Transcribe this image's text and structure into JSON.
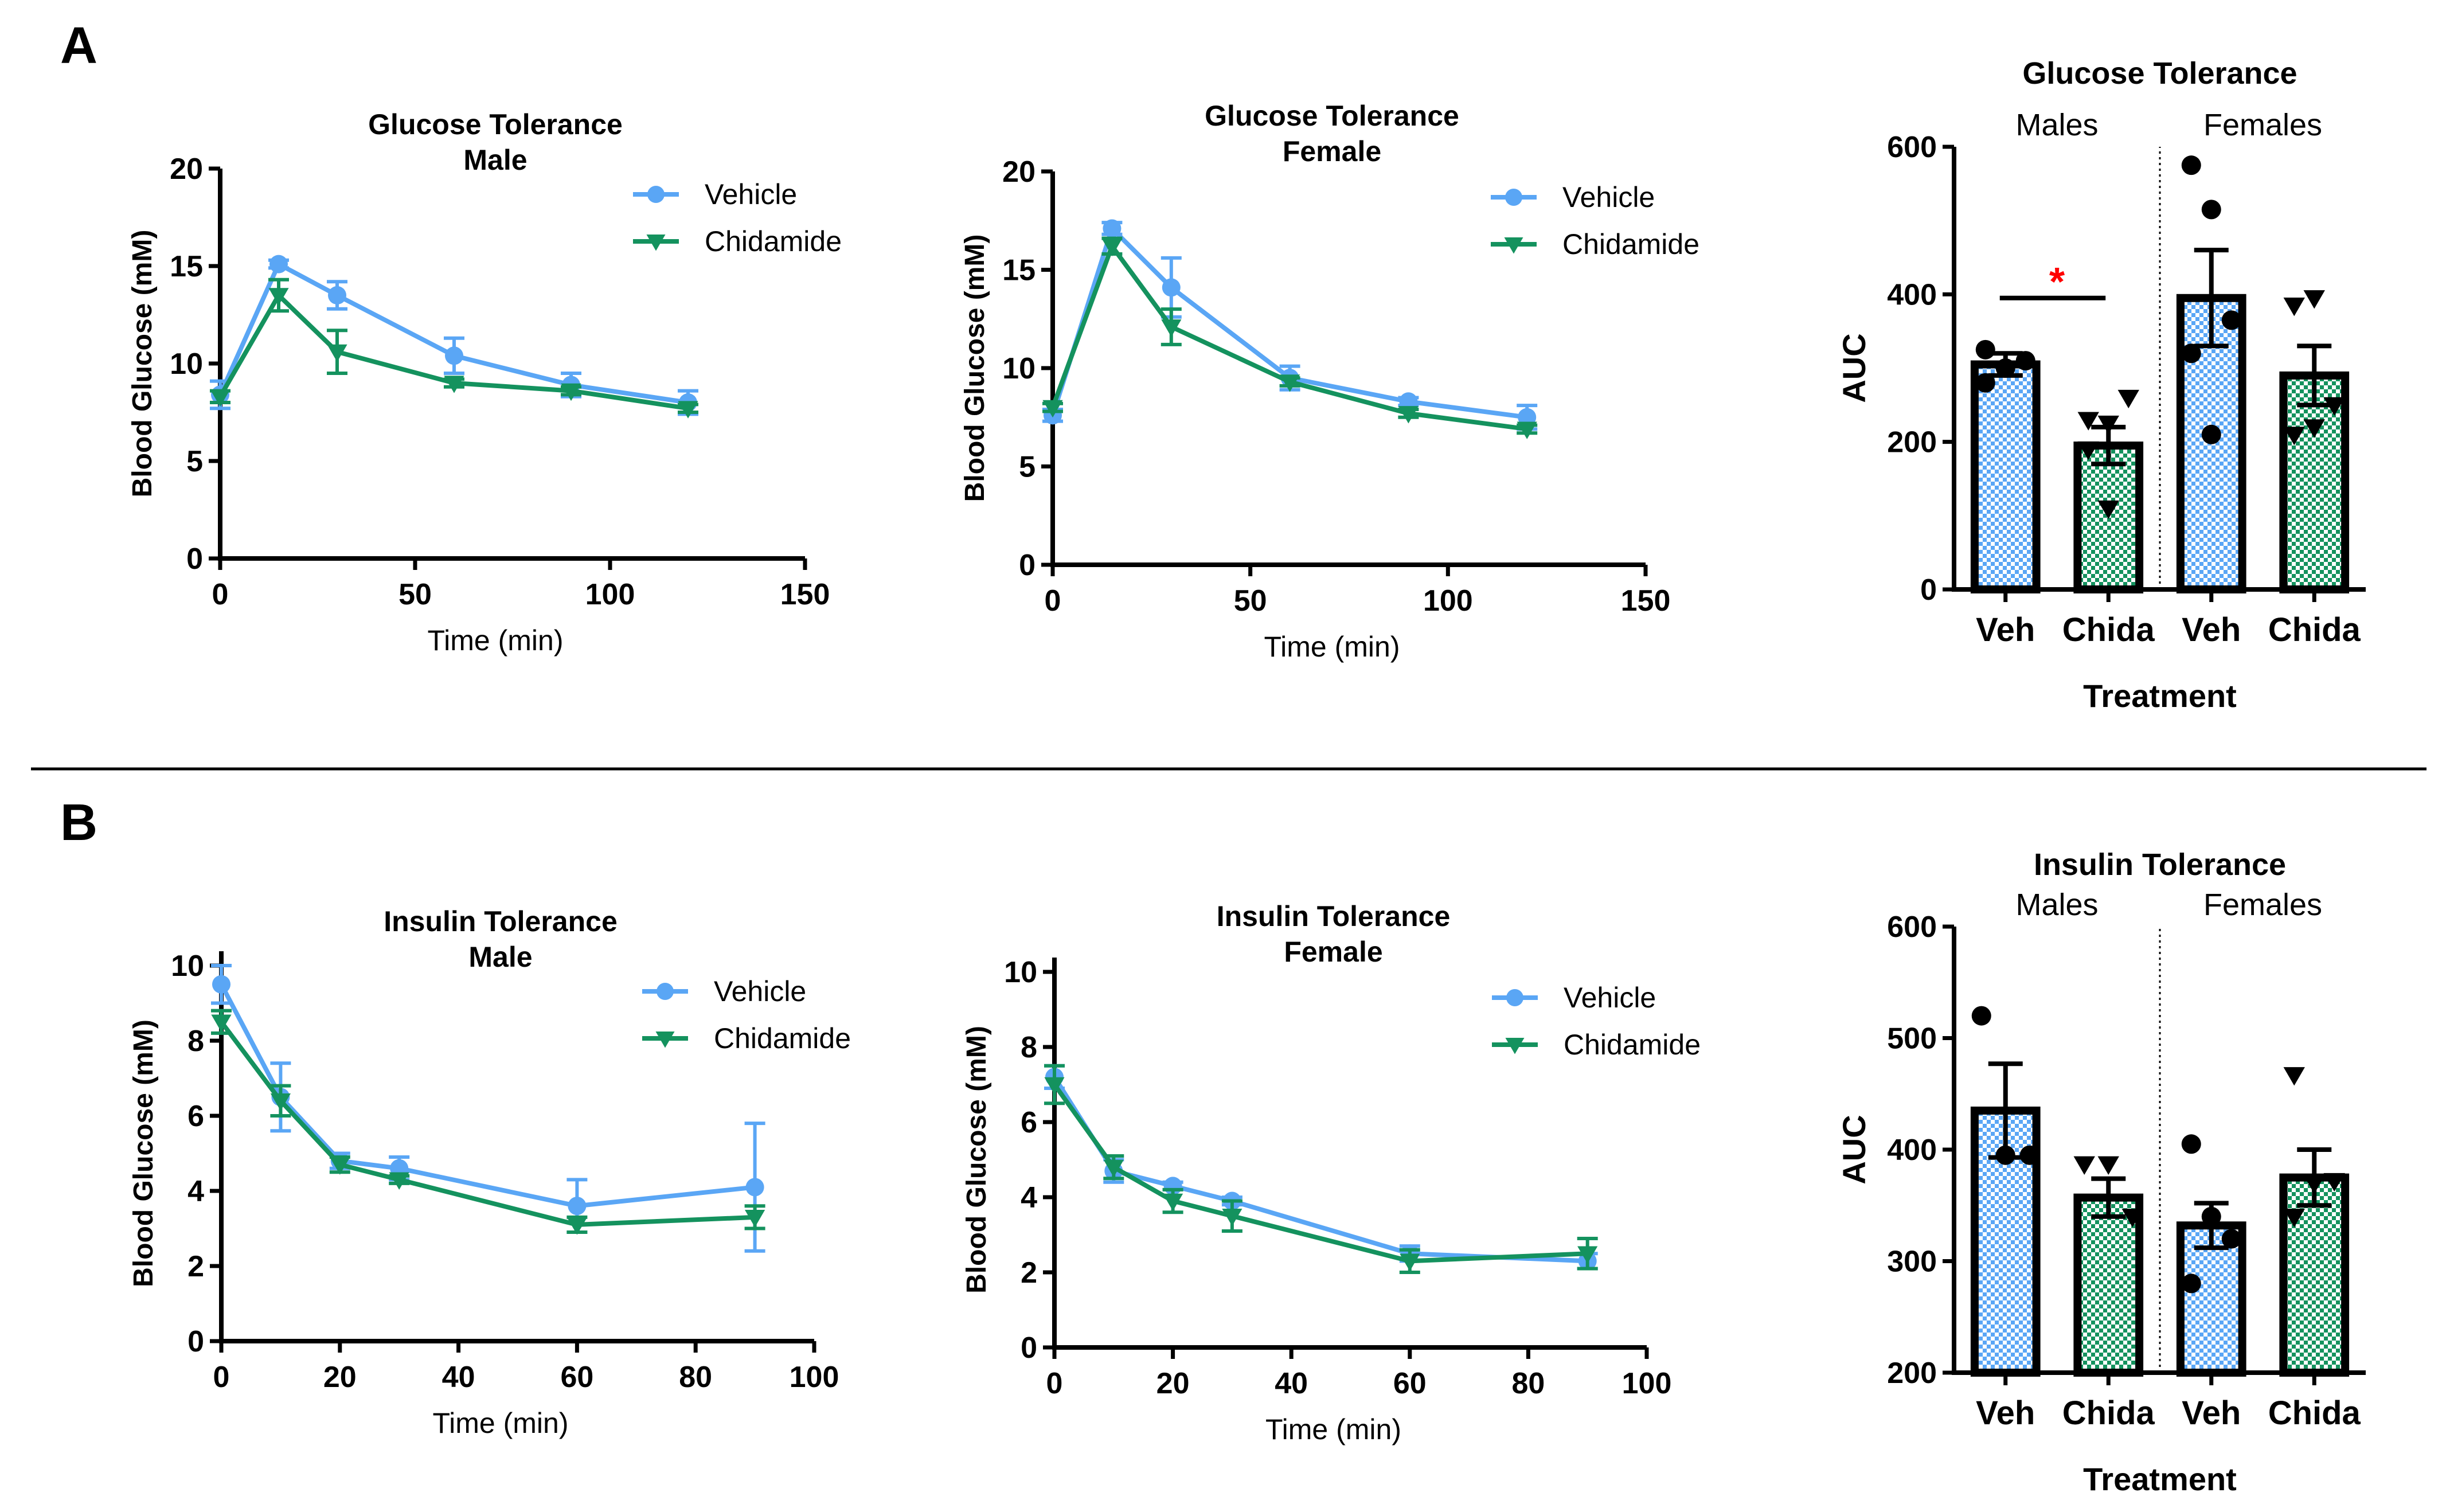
{
  "panel_labels": [
    "A",
    "B"
  ],
  "colors": {
    "vehicle": "#5aa6f5",
    "chidamide": "#14925e",
    "sig": "#ff0000",
    "axis": "#000000"
  },
  "chart_data": [
    {
      "type": "line",
      "title": [
        "Glucose Tolerance",
        "Male"
      ],
      "xlabel": "Time (min)",
      "ylabel": "Blood Glucose (mM)",
      "xlim": [
        0,
        150
      ],
      "ylim": [
        0,
        20
      ],
      "xticks": [
        0,
        50,
        100,
        150
      ],
      "yticks": [
        0,
        5,
        10,
        15,
        20
      ],
      "x": [
        0,
        15,
        30,
        60,
        90,
        120
      ],
      "legend": "top-right",
      "series": [
        {
          "name": "Vehicle",
          "marker": "circle",
          "values": [
            8.4,
            15.1,
            13.5,
            10.4,
            8.9,
            8.0
          ],
          "sem": [
            0.7,
            0.2,
            0.7,
            0.9,
            0.6,
            0.6
          ]
        },
        {
          "name": "Chidamide",
          "marker": "triangle-down",
          "values": [
            8.3,
            13.5,
            10.6,
            9.0,
            8.6,
            7.7
          ],
          "sem": [
            0.3,
            0.8,
            1.1,
            0.2,
            0.2,
            0.2
          ]
        }
      ]
    },
    {
      "type": "line",
      "title": [
        "Glucose Tolerance",
        "Female"
      ],
      "xlabel": "Time (min)",
      "ylabel": "Blood Glucose (mM)",
      "xlim": [
        0,
        150
      ],
      "ylim": [
        0,
        20
      ],
      "xticks": [
        0,
        50,
        100,
        150
      ],
      "yticks": [
        0,
        5,
        10,
        15,
        20
      ],
      "x": [
        0,
        15,
        30,
        60,
        90,
        120
      ],
      "legend": "top-right",
      "series": [
        {
          "name": "Vehicle",
          "marker": "circle",
          "values": [
            7.6,
            17.1,
            14.1,
            9.5,
            8.3,
            7.5
          ],
          "sem": [
            0.3,
            0.3,
            1.5,
            0.6,
            0.2,
            0.6
          ]
        },
        {
          "name": "Chidamide",
          "marker": "triangle-down",
          "values": [
            8.0,
            16.2,
            12.1,
            9.3,
            7.7,
            6.9
          ],
          "sem": [
            0.2,
            0.4,
            0.9,
            0.2,
            0.2,
            0.2
          ]
        }
      ]
    },
    {
      "type": "bar",
      "title": "Glucose Tolerance",
      "xlabel": "Treatment",
      "ylabel": "AUC",
      "ylim": [
        0,
        600
      ],
      "yticks": [
        0,
        200,
        400,
        600
      ],
      "groups": [
        "Males",
        "Females"
      ],
      "categories": [
        "Veh",
        "Chida",
        "Veh",
        "Chida"
      ],
      "bars": [
        {
          "group": "Males",
          "treatment": "Vehicle",
          "mean": 305,
          "sem": 15,
          "points": [
            280,
            300,
            310,
            325
          ]
        },
        {
          "group": "Males",
          "treatment": "Chidamide",
          "mean": 195,
          "sem": 25,
          "points": [
            230,
            225,
            260,
            190,
            110
          ]
        },
        {
          "group": "Females",
          "treatment": "Vehicle",
          "mean": 395,
          "sem": 65,
          "points": [
            575,
            515,
            365,
            320,
            210
          ]
        },
        {
          "group": "Females",
          "treatment": "Chidamide",
          "mean": 290,
          "sem": 40,
          "points": [
            385,
            395,
            250,
            210,
            220
          ]
        }
      ],
      "significance": [
        {
          "between": [
            0,
            1
          ],
          "label": "*",
          "y": 395
        }
      ]
    },
    {
      "type": "line",
      "title": [
        "Insulin Tolerance",
        "Male"
      ],
      "xlabel": "Time (min)",
      "ylabel": "Blood Glucose (mM)",
      "xlim": [
        0,
        100
      ],
      "ylim": [
        0,
        10
      ],
      "xticks": [
        0,
        20,
        40,
        60,
        80,
        100
      ],
      "yticks": [
        0,
        2,
        4,
        6,
        8,
        10
      ],
      "x": [
        0,
        10,
        20,
        30,
        60,
        90
      ],
      "legend": "top-right",
      "series": [
        {
          "name": "Vehicle",
          "marker": "circle",
          "values": [
            9.5,
            6.5,
            4.8,
            4.6,
            3.6,
            4.1
          ],
          "sem": [
            0.5,
            0.9,
            0.2,
            0.3,
            0.7,
            1.7
          ]
        },
        {
          "name": "Chidamide",
          "marker": "triangle-down",
          "values": [
            8.5,
            6.4,
            4.7,
            4.3,
            3.1,
            3.3
          ],
          "sem": [
            0.3,
            0.4,
            0.2,
            0.1,
            0.2,
            0.3
          ]
        }
      ]
    },
    {
      "type": "line",
      "title": [
        "Insulin Tolerance",
        "Female"
      ],
      "xlabel": "Time (min)",
      "ylabel": "Blood Glucose (mM)",
      "xlim": [
        0,
        100
      ],
      "ylim": [
        0,
        10
      ],
      "xticks": [
        0,
        20,
        40,
        60,
        80,
        100
      ],
      "yticks": [
        0,
        2,
        4,
        6,
        8,
        10
      ],
      "x": [
        0,
        10,
        20,
        30,
        60,
        90
      ],
      "legend": "top-right",
      "series": [
        {
          "name": "Vehicle",
          "marker": "circle",
          "values": [
            7.2,
            4.7,
            4.3,
            3.9,
            2.5,
            2.3
          ],
          "sem": [
            0.3,
            0.3,
            0.1,
            0.1,
            0.2,
            0.2
          ]
        },
        {
          "name": "Chidamide",
          "marker": "triangle-down",
          "values": [
            7.0,
            4.8,
            3.9,
            3.5,
            2.3,
            2.5
          ],
          "sem": [
            0.5,
            0.3,
            0.3,
            0.4,
            0.3,
            0.4
          ]
        }
      ]
    },
    {
      "type": "bar",
      "title": "Insulin Tolerance",
      "xlabel": "Treatment",
      "ylabel": "AUC",
      "ylim": [
        200,
        600
      ],
      "yticks": [
        200,
        300,
        400,
        500,
        600
      ],
      "groups": [
        "Males",
        "Females"
      ],
      "categories": [
        "Veh",
        "Chida",
        "Veh",
        "Chida"
      ],
      "bars": [
        {
          "group": "Males",
          "treatment": "Vehicle",
          "mean": 435,
          "sem": 42,
          "points": [
            520,
            395,
            395
          ]
        },
        {
          "group": "Males",
          "treatment": "Chidamide",
          "mean": 357,
          "sem": 17,
          "points": [
            387,
            387,
            340
          ]
        },
        {
          "group": "Females",
          "treatment": "Vehicle",
          "mean": 332,
          "sem": 20,
          "points": [
            405,
            340,
            320,
            280
          ]
        },
        {
          "group": "Females",
          "treatment": "Chidamide",
          "mean": 375,
          "sem": 25,
          "points": [
            467,
            370,
            372,
            340
          ]
        }
      ],
      "significance": []
    }
  ]
}
